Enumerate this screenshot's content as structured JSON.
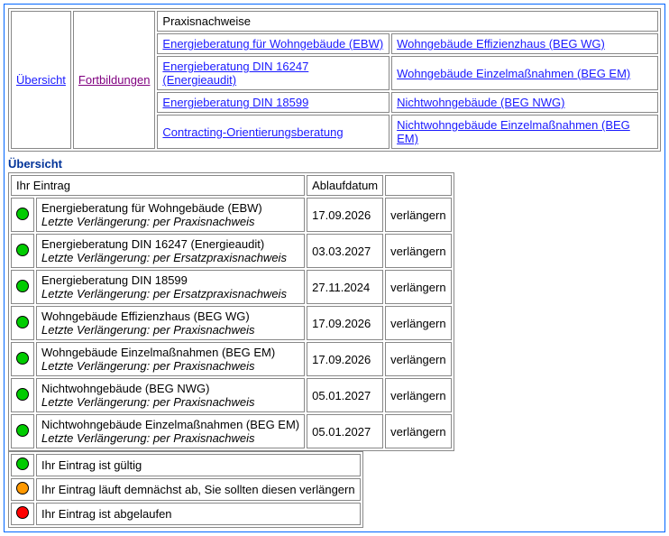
{
  "colors": {
    "frame_border": "#0066ff",
    "cell_border": "#888888",
    "link_blue": "#1a1aff",
    "link_purple": "#800080",
    "section_title": "#003399",
    "status_green": "#00cc00",
    "status_orange": "#ff9900",
    "status_red": "#ff0000"
  },
  "nav": {
    "overview": "Übersicht",
    "training": "Fortbildungen",
    "top_full": "Praxisnachweise",
    "rows": [
      {
        "left": "Energieberatung für Wohngebäude (EBW)",
        "right": "Wohngebäude Effizienzhaus (BEG WG)"
      },
      {
        "left": "Energieberatung DIN 16247 (Energieaudit)",
        "right": "Wohngebäude Einzelmaßnahmen (BEG EM)"
      },
      {
        "left": "Energieberatung DIN 18599",
        "right": "Nichtwohngebäude (BEG NWG)"
      },
      {
        "left": "Contracting-Orientierungsberatung",
        "right": "Nichtwohngebäude Einzelmaßnahmen (BEG EM)"
      }
    ]
  },
  "section_title": "Übersicht",
  "table_headers": {
    "entry": "Ihr Eintrag",
    "expiry": "Ablaufdatum",
    "action": ""
  },
  "entries": [
    {
      "status": "green",
      "title": "Energieberatung für Wohngebäude (EBW)",
      "sub": "Letzte Verlängerung: per Praxisnachweis",
      "expiry": "17.09.2026",
      "action": "verlängern"
    },
    {
      "status": "green",
      "title": "Energieberatung DIN 16247 (Energieaudit)",
      "sub": "Letzte Verlängerung: per Ersatzpraxisnachweis",
      "expiry": "03.03.2027",
      "action": "verlängern"
    },
    {
      "status": "green",
      "title": "Energieberatung DIN 18599",
      "sub": "Letzte Verlängerung: per Ersatzpraxisnachweis",
      "expiry": "27.11.2024",
      "action": "verlängern"
    },
    {
      "status": "green",
      "title": "Wohngebäude Effizienzhaus (BEG WG)",
      "sub": "Letzte Verlängerung: per Praxisnachweis",
      "expiry": "17.09.2026",
      "action": "verlängern"
    },
    {
      "status": "green",
      "title": "Wohngebäude Einzelmaßnahmen (BEG EM)",
      "sub": "Letzte Verlängerung: per Praxisnachweis",
      "expiry": "17.09.2026",
      "action": "verlängern"
    },
    {
      "status": "green",
      "title": "Nichtwohngebäude (BEG NWG)",
      "sub": "Letzte Verlängerung: per Praxisnachweis",
      "expiry": "05.01.2027",
      "action": "verlängern"
    },
    {
      "status": "green",
      "title": "Nichtwohngebäude Einzelmaßnahmen (BEG EM)",
      "sub": "Letzte Verlängerung: per Praxisnachweis",
      "expiry": "05.01.2027",
      "action": "verlängern"
    }
  ],
  "legend": [
    {
      "status": "green",
      "text": "Ihr Eintrag ist gültig"
    },
    {
      "status": "orange",
      "text": "Ihr Eintrag läuft demnächst ab, Sie sollten diesen verlängern"
    },
    {
      "status": "red",
      "text": "Ihr Eintrag ist abgelaufen"
    }
  ]
}
